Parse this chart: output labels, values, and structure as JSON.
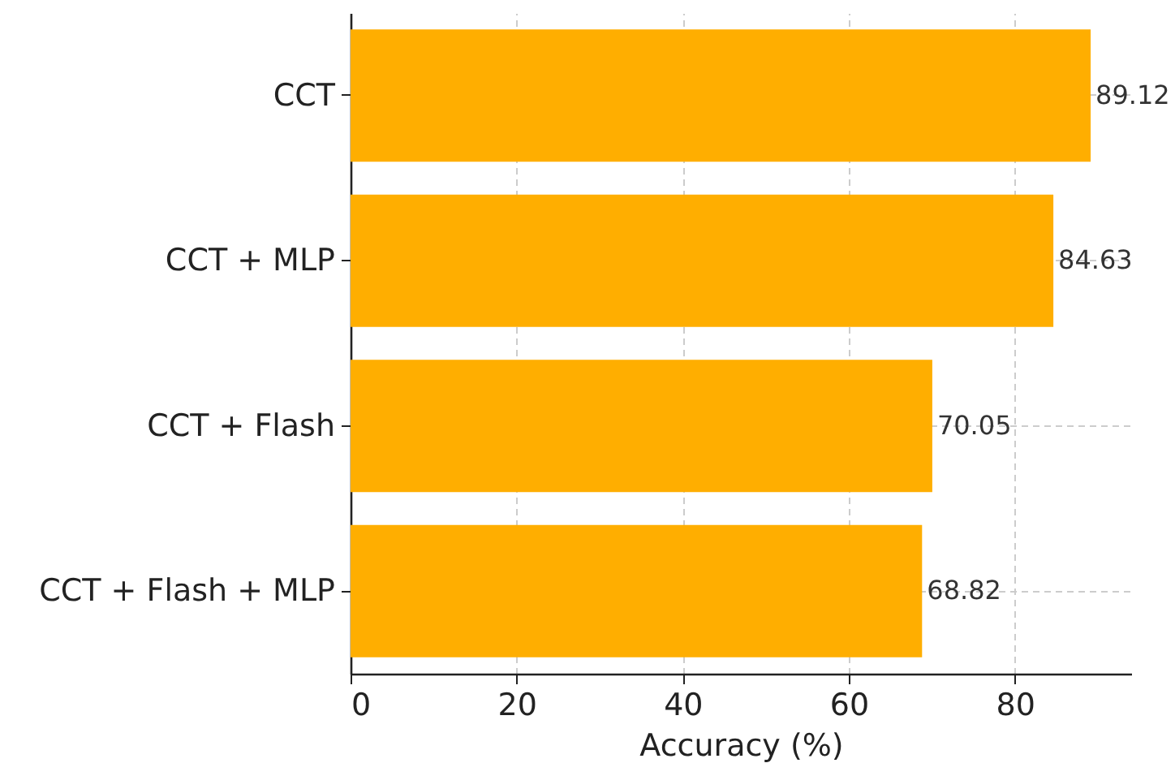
{
  "chart_data": {
    "type": "bar",
    "orientation": "horizontal",
    "xlabel": "Accuracy (%)",
    "categories": [
      "CCT",
      "CCT + MLP",
      "CCT + Flash",
      "CCT + Flash + MLP"
    ],
    "values": [
      89.12,
      84.63,
      70.05,
      68.82
    ],
    "color": "#ffae00",
    "xlim": [
      0,
      94
    ],
    "xticks": [
      0,
      20,
      40,
      60,
      80
    ],
    "grid": true,
    "data_labels": true
  }
}
